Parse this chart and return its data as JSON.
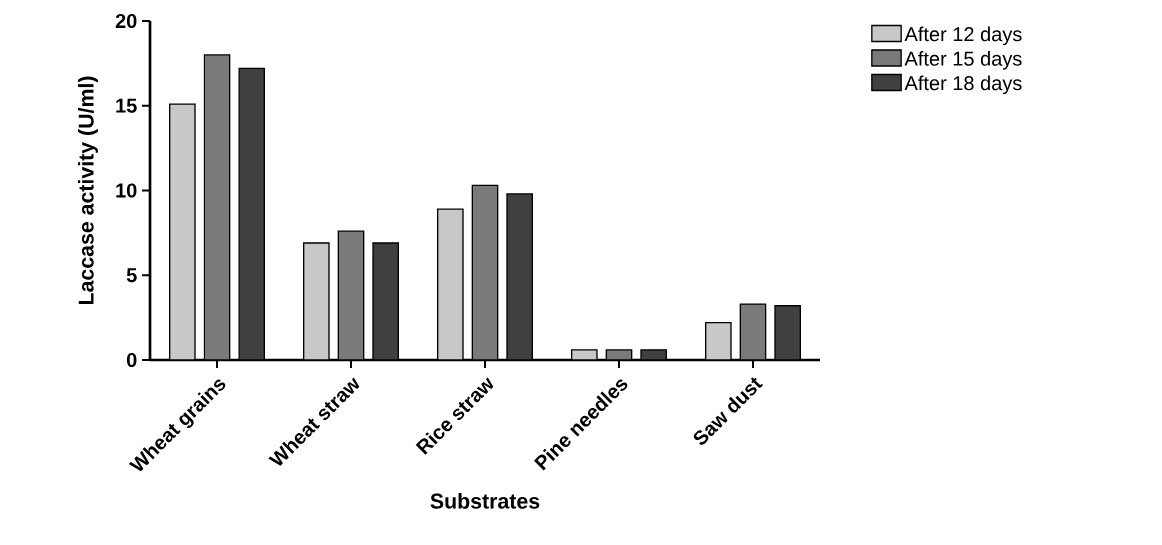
{
  "chart_data": {
    "type": "bar",
    "xlabel": "Substrates",
    "ylabel": "Laccase activity (U/ml)",
    "categories": [
      "Wheat grains",
      "Wheat straw",
      "Rice straw",
      "Pine needles",
      "Saw dust"
    ],
    "series": [
      {
        "name": "After 12 days",
        "color": "#c8c8c8",
        "values": [
          15.1,
          6.9,
          8.9,
          0.6,
          2.2
        ]
      },
      {
        "name": "After 15 days",
        "color": "#7a7a7a",
        "values": [
          18.0,
          7.6,
          10.3,
          0.6,
          3.3
        ]
      },
      {
        "name": "After 18 days",
        "color": "#404040",
        "values": [
          17.2,
          6.9,
          9.8,
          0.6,
          3.2
        ]
      }
    ],
    "ylim": [
      0,
      20
    ],
    "yticks": [
      0,
      5,
      10,
      15,
      20
    ],
    "grid": false,
    "legend": "top right"
  }
}
